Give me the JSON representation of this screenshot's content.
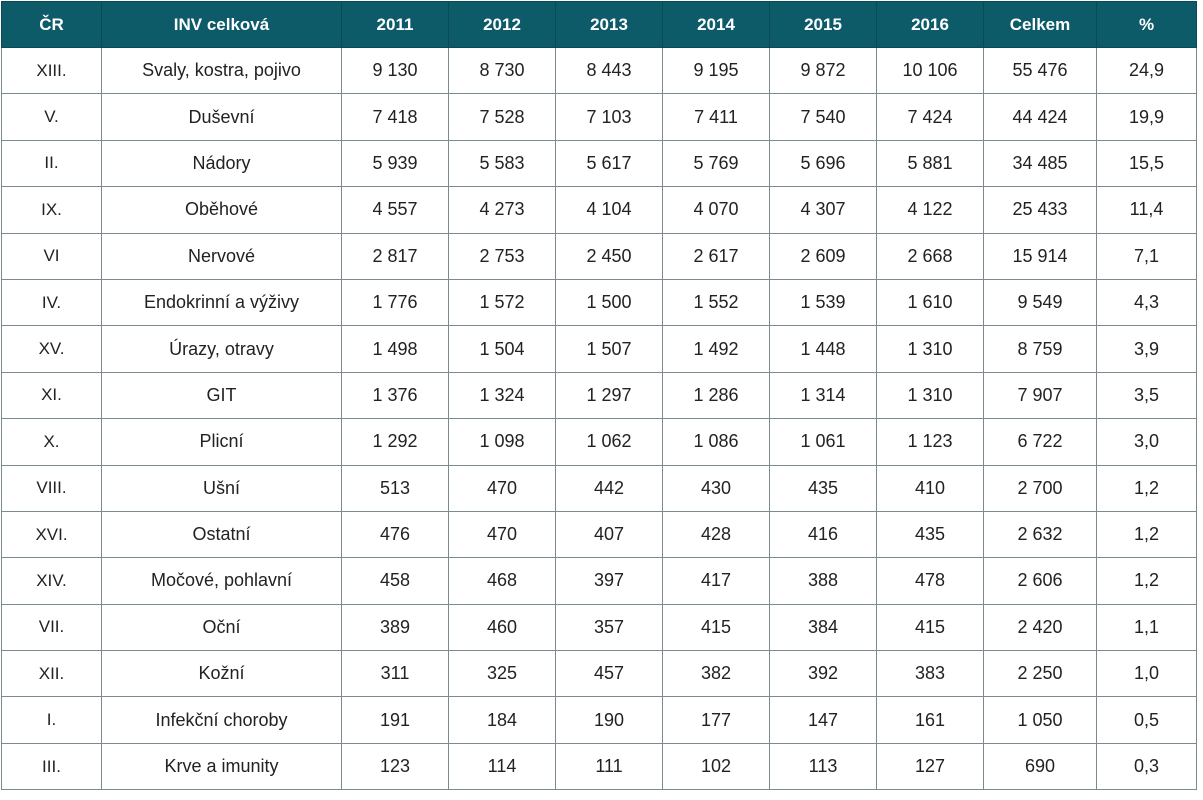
{
  "table": {
    "headers": [
      "ČR",
      "INV celková",
      "2011",
      "2012",
      "2013",
      "2014",
      "2015",
      "2016",
      "Celkem",
      "%"
    ],
    "rows": [
      [
        "XIII.",
        "Svaly, kostra, pojivo",
        "9 130",
        "8 730",
        "8 443",
        "9 195",
        "9 872",
        "10 106",
        "55 476",
        "24,9"
      ],
      [
        "V.",
        "Duševní",
        "7 418",
        "7 528",
        "7 103",
        "7 411",
        "7 540",
        "7 424",
        "44 424",
        "19,9"
      ],
      [
        "II.",
        "Nádory",
        "5 939",
        "5 583",
        "5 617",
        "5 769",
        "5 696",
        "5 881",
        "34 485",
        "15,5"
      ],
      [
        "IX.",
        "Oběhové",
        "4 557",
        "4 273",
        "4 104",
        "4 070",
        "4 307",
        "4 122",
        "25 433",
        "11,4"
      ],
      [
        "VI",
        "Nervové",
        "2 817",
        "2 753",
        "2 450",
        "2 617",
        "2 609",
        "2 668",
        "15 914",
        "7,1"
      ],
      [
        "IV.",
        "Endokrinní a výživy",
        "1 776",
        "1 572",
        "1 500",
        "1 552",
        "1 539",
        "1 610",
        "9 549",
        "4,3"
      ],
      [
        "XV.",
        "Úrazy, otravy",
        "1 498",
        "1 504",
        "1 507",
        "1 492",
        "1 448",
        "1 310",
        "8 759",
        "3,9"
      ],
      [
        "XI.",
        "GIT",
        "1 376",
        "1 324",
        "1 297",
        "1 286",
        "1 314",
        "1 310",
        "7 907",
        "3,5"
      ],
      [
        "X.",
        "Plicní",
        "1 292",
        "1 098",
        "1 062",
        "1 086",
        "1 061",
        "1 123",
        "6 722",
        "3,0"
      ],
      [
        "VIII.",
        "Ušní",
        "513",
        "470",
        "442",
        "430",
        "435",
        "410",
        "2 700",
        "1,2"
      ],
      [
        "XVI.",
        "Ostatní",
        "476",
        "470",
        "407",
        "428",
        "416",
        "435",
        "2 632",
        "1,2"
      ],
      [
        "XIV.",
        "Močové, pohlavní",
        "458",
        "468",
        "397",
        "417",
        "388",
        "478",
        "2 606",
        "1,2"
      ],
      [
        "VII.",
        "Oční",
        "389",
        "460",
        "357",
        "415",
        "384",
        "415",
        "2 420",
        "1,1"
      ],
      [
        "XII.",
        "Kožní",
        "311",
        "325",
        "457",
        "382",
        "392",
        "383",
        "2 250",
        "1,0"
      ],
      [
        "I.",
        "Infekční choroby",
        "191",
        "184",
        "190",
        "177",
        "147",
        "161",
        "1 050",
        "0,5"
      ],
      [
        "III.",
        "Krve a imunity",
        "123",
        "114",
        "111",
        "102",
        "113",
        "127",
        "690",
        "0,3"
      ]
    ]
  },
  "colors": {
    "header_bg": "#0d5a69",
    "header_text": "#ffffff",
    "grid": "#7a8a8e"
  }
}
